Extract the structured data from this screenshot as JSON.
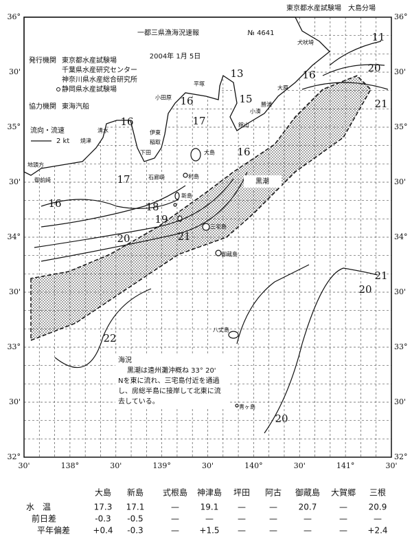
{
  "header": {
    "office": "東京都水産試験場　大島分場",
    "title": "一都三県漁海況速報",
    "number": "№ 4641",
    "date": "2004年 1月 5日"
  },
  "publishers": {
    "label": "発行機関",
    "items": [
      "東京都水産試験場",
      "千葉県水産研究センター",
      "神奈川県水産総合研究所",
      "静岡県水産試験場"
    ]
  },
  "cooperation": {
    "label": "協力機関",
    "items": [
      "東海汽船"
    ]
  },
  "legend": {
    "label": "流向・流速",
    "speed": "2 kt"
  },
  "current_label": "黒潮",
  "lat_labels": [
    "36°",
    "30'",
    "35°",
    "30'",
    "34°",
    "30'",
    "33°",
    "30'",
    "32°"
  ],
  "lon_labels": [
    "30'",
    "138°",
    "30'",
    "139°",
    "30'",
    "140°",
    "30'",
    "141°",
    "30'"
  ],
  "isotherm_labels": [
    "11",
    "20",
    "21",
    "16",
    "15",
    "13",
    "16",
    "17",
    "16",
    "16",
    "17",
    "16",
    "18",
    "19",
    "20",
    "21",
    "22",
    "21",
    "20",
    "20"
  ],
  "places": [
    "犬吠埼",
    "大原",
    "勝浦",
    "小湊",
    "館山",
    "平塚",
    "小田原",
    "伊東",
    "稲取",
    "下田",
    "石廊崎",
    "清水",
    "焼津",
    "御前崎",
    "地頭方",
    "大島",
    "利島",
    "新島",
    "三宅島",
    "御蔵島",
    "八丈島",
    "青ヶ島"
  ],
  "note": {
    "title": "海況",
    "lines": [
      "黒潮は遠州灘沖概ね 33° 20'",
      "Nを東に流れ、三宅島付近を通過",
      "し、房総半島に接岸して北東に流",
      "去している。"
    ]
  },
  "table": {
    "header": [
      "大島",
      "新島",
      "式根島",
      "神津島",
      "坪田",
      "阿古",
      "御蔵島",
      "大賀郷",
      "三根"
    ],
    "rows": [
      [
        "水　温",
        "17.3",
        "17.1",
        "—",
        "19.1",
        "—",
        "—",
        "20.7",
        "—",
        "20.9"
      ],
      [
        "前日差",
        "-0.3",
        "-0.5",
        "—",
        "—",
        "—",
        "—",
        "—",
        "—",
        "—"
      ],
      [
        "平年偏差",
        "+0.4",
        "-0.3",
        "—",
        "+1.5",
        "—",
        "—",
        "—",
        "—",
        "+2.4"
      ]
    ]
  }
}
